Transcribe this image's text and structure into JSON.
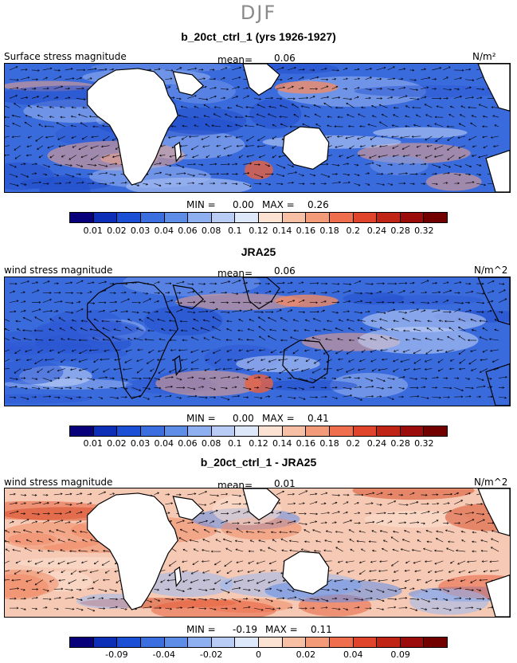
{
  "figure": {
    "title": "DJF"
  },
  "panels": [
    {
      "title": "b_20ct_ctrl_1 (yrs 1926-1927)",
      "label": "Surface stress magnitude",
      "mean_label": "mean=",
      "mean_value": "0.06",
      "units": "N/m²",
      "min_label": "MIN =",
      "min_value": "0.00",
      "max_label": "MAX =",
      "max_value": "0.26",
      "colorbar": {
        "colors": [
          "#08007a",
          "#0d2fb8",
          "#1a4fd6",
          "#3b6fe0",
          "#5e8de8",
          "#8fb0f0",
          "#b8ccf6",
          "#dde8fb",
          "#fbe2d2",
          "#f7c0a4",
          "#f39a78",
          "#ee6e4e",
          "#e0442a",
          "#c02414",
          "#9c0c0a",
          "#720000"
        ],
        "tick_labels": [
          "0.01",
          "0.02",
          "0.03",
          "0.04",
          "0.06",
          "0.08",
          "0.1",
          "0.12",
          "0.14",
          "0.16",
          "0.18",
          "0.2",
          "0.24",
          "0.28",
          "0.32"
        ]
      }
    },
    {
      "title": "JRA25",
      "label": "wind stress magnitude",
      "mean_label": "mean=",
      "mean_value": "0.06",
      "units": "N/m^2",
      "min_label": "MIN =",
      "min_value": "0.00",
      "max_label": "MAX =",
      "max_value": "0.41",
      "colorbar": {
        "colors": [
          "#08007a",
          "#0d2fb8",
          "#1a4fd6",
          "#3b6fe0",
          "#5e8de8",
          "#8fb0f0",
          "#b8ccf6",
          "#dde8fb",
          "#fbe2d2",
          "#f7c0a4",
          "#f39a78",
          "#ee6e4e",
          "#e0442a",
          "#c02414",
          "#9c0c0a",
          "#720000"
        ],
        "tick_labels": [
          "0.01",
          "0.02",
          "0.03",
          "0.04",
          "0.06",
          "0.08",
          "0.1",
          "0.12",
          "0.14",
          "0.16",
          "0.18",
          "0.2",
          "0.24",
          "0.28",
          "0.32"
        ]
      }
    },
    {
      "title": "b_20ct_ctrl_1 - JRA25",
      "label": "wind stress magnitude",
      "mean_label": "mean=",
      "mean_value": "0.01",
      "units": "N/m^2",
      "min_label": "MIN =",
      "min_value": "-0.19",
      "max_label": "MAX =",
      "max_value": "0.11",
      "colorbar": {
        "colors": [
          "#08007a",
          "#0d2fb8",
          "#1a4fd6",
          "#3b6fe0",
          "#5e8de8",
          "#8fb0f0",
          "#b8ccf6",
          "#dde8fb",
          "#fbe2d2",
          "#f7c0a4",
          "#f39a78",
          "#ee6e4e",
          "#e0442a",
          "#c02414",
          "#9c0c0a",
          "#720000"
        ],
        "tick_labels": [
          "",
          "-0.09",
          "",
          "-0.04",
          "",
          "-0.02",
          "",
          "0",
          "",
          "0.02",
          "",
          "0.04",
          "",
          "0.09",
          ""
        ]
      }
    }
  ],
  "colors": {
    "ocean_base": "#3f6fe0",
    "land": "#ffffff",
    "highlight": "#f0805c"
  }
}
